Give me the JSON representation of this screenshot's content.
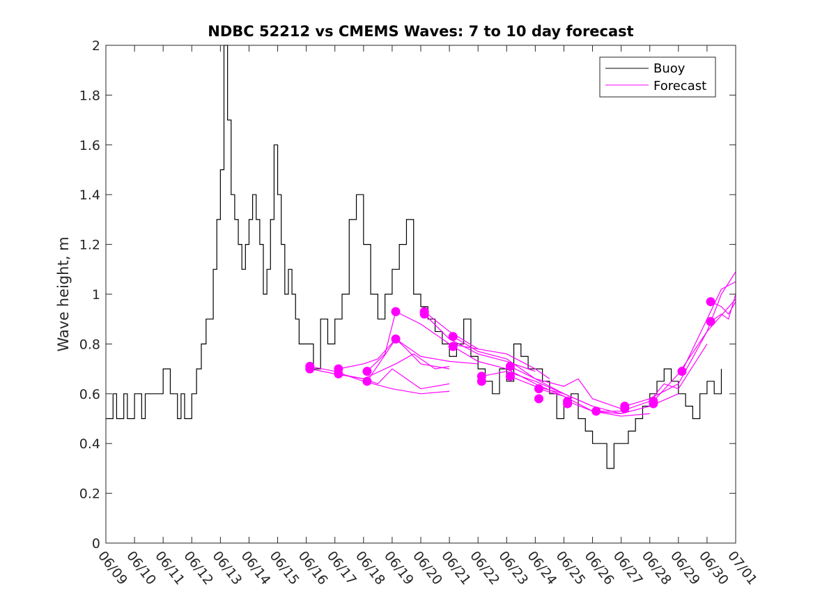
{
  "chart_data": {
    "type": "line",
    "title": "NDBC 52212 vs CMEMS Waves: 7 to 10 day forecast",
    "xlabel": "",
    "ylabel": "Wave height, m",
    "ylim": [
      0,
      2
    ],
    "yticks": [
      0,
      0.2,
      0.4,
      0.6,
      0.8,
      1,
      1.2,
      1.4,
      1.6,
      1.8,
      2
    ],
    "ytick_labels": [
      "0",
      "0.2",
      "0.4",
      "0.6",
      "0.8",
      "1",
      "1.2",
      "1.4",
      "1.6",
      "1.8",
      "2"
    ],
    "xlim": [
      "06/09",
      "07/01"
    ],
    "xtick_labels": [
      "06/09",
      "06/10",
      "06/11",
      "06/12",
      "06/13",
      "06/14",
      "06/15",
      "06/16",
      "06/17",
      "06/18",
      "06/19",
      "06/20",
      "06/21",
      "06/22",
      "06/23",
      "06/24",
      "06/25",
      "06/26",
      "06/27",
      "06/28",
      "06/29",
      "06/30",
      "07/01"
    ],
    "grid": false,
    "legend_position": "top-right",
    "colors": {
      "buoy": "#000000",
      "forecast": "#ff00ff"
    },
    "series": [
      {
        "name": "Buoy",
        "x": [
          "06/09 00:00",
          "06/09 06:00",
          "06/09 09:00",
          "06/09 12:00",
          "06/09 15:00",
          "06/09 18:00",
          "06/10 00:00",
          "06/10 06:00",
          "06/10 09:00",
          "06/10 12:00",
          "06/10 18:00",
          "06/11 00:00",
          "06/11 06:00",
          "06/11 09:00",
          "06/11 12:00",
          "06/11 15:00",
          "06/11 18:00",
          "06/11 21:00",
          "06/12 00:00",
          "06/12 04:00",
          "06/12 08:00",
          "06/12 12:00",
          "06/12 15:00",
          "06/12 18:00",
          "06/12 21:00",
          "06/13 00:00",
          "06/13 03:00",
          "06/13 06:00",
          "06/13 09:00",
          "06/13 12:00",
          "06/13 15:00",
          "06/13 18:00",
          "06/13 21:00",
          "06/14 00:00",
          "06/14 03:00",
          "06/14 06:00",
          "06/14 09:00",
          "06/14 12:00",
          "06/14 15:00",
          "06/14 18:00",
          "06/14 21:00",
          "06/15 00:00",
          "06/15 03:00",
          "06/15 06:00",
          "06/15 09:00",
          "06/15 12:00",
          "06/15 15:00",
          "06/15 18:00",
          "06/15 21:00",
          "06/16 00:00",
          "06/16 06:00",
          "06/16 12:00",
          "06/16 18:00",
          "06/17 00:00",
          "06/17 06:00",
          "06/17 12:00",
          "06/17 18:00",
          "06/18 00:00",
          "06/18 06:00",
          "06/18 12:00",
          "06/18 18:00",
          "06/19 00:00",
          "06/19 06:00",
          "06/19 12:00",
          "06/19 18:00",
          "06/20 00:00",
          "06/20 06:00",
          "06/20 12:00",
          "06/20 18:00",
          "06/21 00:00",
          "06/21 06:00",
          "06/21 12:00",
          "06/21 18:00",
          "06/22 00:00",
          "06/22 06:00",
          "06/22 12:00",
          "06/22 18:00",
          "06/23 00:00",
          "06/23 06:00",
          "06/23 12:00",
          "06/23 18:00",
          "06/24 00:00",
          "06/24 06:00",
          "06/24 12:00",
          "06/24 18:00",
          "06/25 00:00",
          "06/25 06:00",
          "06/25 12:00",
          "06/25 18:00",
          "06/26 00:00",
          "06/26 06:00",
          "06/26 12:00",
          "06/26 18:00",
          "06/27 00:00",
          "06/27 06:00",
          "06/27 12:00",
          "06/27 18:00",
          "06/28 00:00",
          "06/28 06:00",
          "06/28 12:00",
          "06/28 18:00",
          "06/29 00:00",
          "06/29 06:00",
          "06/29 12:00",
          "06/29 18:00",
          "06/30 00:00",
          "06/30 06:00",
          "06/30 12:00"
        ],
        "y": [
          0.5,
          0.6,
          0.5,
          0.5,
          0.6,
          0.5,
          0.6,
          0.5,
          0.6,
          0.6,
          0.6,
          0.7,
          0.6,
          0.6,
          0.5,
          0.6,
          0.5,
          0.5,
          0.6,
          0.7,
          0.8,
          0.9,
          0.9,
          1.1,
          1.3,
          1.5,
          2.0,
          1.7,
          1.4,
          1.3,
          1.2,
          1.1,
          1.2,
          1.3,
          1.4,
          1.3,
          1.2,
          1.0,
          1.1,
          1.3,
          1.6,
          1.4,
          1.2,
          1.0,
          1.1,
          1.0,
          0.9,
          0.8,
          0.8,
          0.8,
          0.7,
          0.9,
          0.8,
          0.9,
          1.0,
          1.3,
          1.4,
          1.2,
          1.0,
          0.9,
          1.0,
          1.1,
          1.2,
          1.3,
          1.0,
          0.95,
          0.9,
          0.85,
          0.8,
          0.75,
          0.8,
          0.9,
          0.75,
          0.7,
          0.65,
          0.6,
          0.7,
          0.65,
          0.8,
          0.75,
          0.7,
          0.7,
          0.65,
          0.6,
          0.5,
          0.55,
          0.6,
          0.5,
          0.45,
          0.4,
          0.4,
          0.3,
          0.4,
          0.4,
          0.45,
          0.5,
          0.55,
          0.6,
          0.65,
          0.7,
          0.65,
          0.6,
          0.55,
          0.5,
          0.6,
          0.65,
          0.6,
          0.7
        ]
      },
      {
        "name": "Forecast",
        "start_points": [
          {
            "x": "06/16 03:00",
            "y": 0.71
          },
          {
            "x": "06/16 03:00",
            "y": 0.7
          },
          {
            "x": "06/17 03:00",
            "y": 0.7
          },
          {
            "x": "06/17 03:00",
            "y": 0.68
          },
          {
            "x": "06/18 03:00",
            "y": 0.69
          },
          {
            "x": "06/18 03:00",
            "y": 0.65
          },
          {
            "x": "06/19 03:00",
            "y": 0.93
          },
          {
            "x": "06/19 03:00",
            "y": 0.82
          },
          {
            "x": "06/20 03:00",
            "y": 0.93
          },
          {
            "x": "06/20 03:00",
            "y": 0.92
          },
          {
            "x": "06/21 03:00",
            "y": 0.83
          },
          {
            "x": "06/21 03:00",
            "y": 0.79
          },
          {
            "x": "06/22 03:00",
            "y": 0.67
          },
          {
            "x": "06/22 03:00",
            "y": 0.65
          },
          {
            "x": "06/23 03:00",
            "y": 0.71
          },
          {
            "x": "06/23 03:00",
            "y": 0.67
          },
          {
            "x": "06/24 03:00",
            "y": 0.62
          },
          {
            "x": "06/24 03:00",
            "y": 0.58
          },
          {
            "x": "06/25 03:00",
            "y": 0.57
          },
          {
            "x": "06/25 03:00",
            "y": 0.56
          },
          {
            "x": "06/26 03:00",
            "y": 0.53
          },
          {
            "x": "06/27 03:00",
            "y": 0.55
          },
          {
            "x": "06/27 03:00",
            "y": 0.54
          },
          {
            "x": "06/28 03:00",
            "y": 0.57
          },
          {
            "x": "06/28 03:00",
            "y": 0.56
          },
          {
            "x": "06/29 03:00",
            "y": 0.69
          },
          {
            "x": "06/30 03:00",
            "y": 0.97
          },
          {
            "x": "06/30 03:00",
            "y": 0.89
          }
        ],
        "curves": [
          {
            "x": [
              "06/16 03:00",
              "06/17 00:00",
              "06/18 00:00",
              "06/19 00:00",
              "06/20 00:00",
              "06/21 00:00"
            ],
            "y": [
              0.71,
              0.69,
              0.65,
              0.62,
              0.6,
              0.61
            ]
          },
          {
            "x": [
              "06/16 03:00",
              "06/17 00:00",
              "06/18 00:00",
              "06/18 12:00",
              "06/19 00:00",
              "06/20 00:00",
              "06/21 00:00"
            ],
            "y": [
              0.7,
              0.68,
              0.66,
              0.64,
              0.7,
              0.62,
              0.64
            ]
          },
          {
            "x": [
              "06/17 03:00",
              "06/18 00:00",
              "06/18 12:00",
              "06/19 03:00",
              "06/19 12:00",
              "06/20 00:00",
              "06/21 00:00"
            ],
            "y": [
              0.7,
              0.72,
              0.74,
              0.82,
              0.78,
              0.72,
              0.7
            ]
          },
          {
            "x": [
              "06/17 03:00",
              "06/18 00:00",
              "06/19 03:00",
              "06/19 18:00",
              "06/20 12:00",
              "06/21 00:00"
            ],
            "y": [
              0.68,
              0.66,
              0.72,
              0.76,
              0.7,
              0.71
            ]
          },
          {
            "x": [
              "06/18 03:00",
              "06/18 18:00",
              "06/19 03:00",
              "06/20 00:00",
              "06/21 00:00",
              "06/22 00:00"
            ],
            "y": [
              0.69,
              0.76,
              0.93,
              0.88,
              0.8,
              0.78
            ]
          },
          {
            "x": [
              "06/18 03:00",
              "06/19 03:00",
              "06/20 00:00",
              "06/21 00:00",
              "06/22 00:00"
            ],
            "y": [
              0.65,
              0.82,
              0.75,
              0.73,
              0.72
            ]
          },
          {
            "x": [
              "06/20 03:00",
              "06/21 00:00",
              "06/22 00:00",
              "06/23 00:00",
              "06/24 00:00",
              "06/24 12:00"
            ],
            "y": [
              0.93,
              0.85,
              0.78,
              0.76,
              0.7,
              0.66
            ]
          },
          {
            "x": [
              "06/20 03:00",
              "06/21 00:00",
              "06/22 00:00",
              "06/23 00:00",
              "06/24 00:00"
            ],
            "y": [
              0.92,
              0.82,
              0.76,
              0.73,
              0.69
            ]
          },
          {
            "x": [
              "06/21 03:00",
              "06/22 00:00",
              "06/23 00:00",
              "06/24 00:00",
              "06/25 00:00"
            ],
            "y": [
              0.83,
              0.77,
              0.74,
              0.66,
              0.6
            ]
          },
          {
            "x": [
              "06/21 03:00",
              "06/22 00:00",
              "06/23 00:00",
              "06/24 00:00",
              "06/25 00:00"
            ],
            "y": [
              0.79,
              0.73,
              0.7,
              0.64,
              0.59
            ]
          },
          {
            "x": [
              "06/22 03:00",
              "06/23 00:00",
              "06/24 00:00",
              "06/25 00:00",
              "06/26 00:00"
            ],
            "y": [
              0.67,
              0.69,
              0.65,
              0.6,
              0.55
            ]
          },
          {
            "x": [
              "06/23 03:00",
              "06/24 00:00",
              "06/25 00:00",
              "06/25 12:00",
              "06/26 00:00",
              "06/27 00:00"
            ],
            "y": [
              0.71,
              0.66,
              0.63,
              0.66,
              0.58,
              0.54
            ]
          },
          {
            "x": [
              "06/23 03:00",
              "06/24 00:00",
              "06/25 00:00",
              "06/26 00:00",
              "06/27 00:00"
            ],
            "y": [
              0.67,
              0.63,
              0.6,
              0.55,
              0.52
            ]
          },
          {
            "x": [
              "06/24 03:00",
              "06/25 00:00",
              "06/26 00:00",
              "06/27 00:00",
              "06/28 00:00"
            ],
            "y": [
              0.62,
              0.59,
              0.53,
              0.51,
              0.52
            ]
          },
          {
            "x": [
              "06/25 03:00",
              "06/26 00:00",
              "06/27 00:00",
              "06/28 00:00",
              "06/29 00:00"
            ],
            "y": [
              0.57,
              0.53,
              0.52,
              0.55,
              0.6
            ]
          },
          {
            "x": [
              "06/26 03:00",
              "06/27 00:00",
              "06/28 00:00",
              "06/28 12:00",
              "06/29 00:00",
              "06/30 00:00"
            ],
            "y": [
              0.53,
              0.53,
              0.57,
              0.64,
              0.62,
              0.8
            ]
          },
          {
            "x": [
              "06/27 03:00",
              "06/28 00:00",
              "06/29 00:00",
              "06/30 00:00",
              "07/01 00:00"
            ],
            "y": [
              0.55,
              0.58,
              0.64,
              0.85,
              0.98
            ]
          },
          {
            "x": [
              "06/28 03:00",
              "06/29 00:00",
              "06/30 00:00",
              "06/30 12:00",
              "07/01 00:00"
            ],
            "y": [
              0.57,
              0.68,
              0.85,
              1.0,
              1.09
            ]
          },
          {
            "x": [
              "06/29 03:00",
              "06/30 00:00",
              "06/30 12:00",
              "07/01 00:00"
            ],
            "y": [
              0.69,
              0.9,
              1.02,
              1.05
            ]
          },
          {
            "x": [
              "06/30 03:00",
              "06/30 12:00",
              "06/30 18:00",
              "07/01 00:00"
            ],
            "y": [
              0.97,
              0.95,
              0.92,
              0.97
            ]
          },
          {
            "x": [
              "06/30 03:00",
              "06/30 12:00",
              "06/30 18:00",
              "07/01 00:00"
            ],
            "y": [
              0.89,
              0.92,
              0.9,
              1.0
            ]
          }
        ]
      }
    ]
  }
}
